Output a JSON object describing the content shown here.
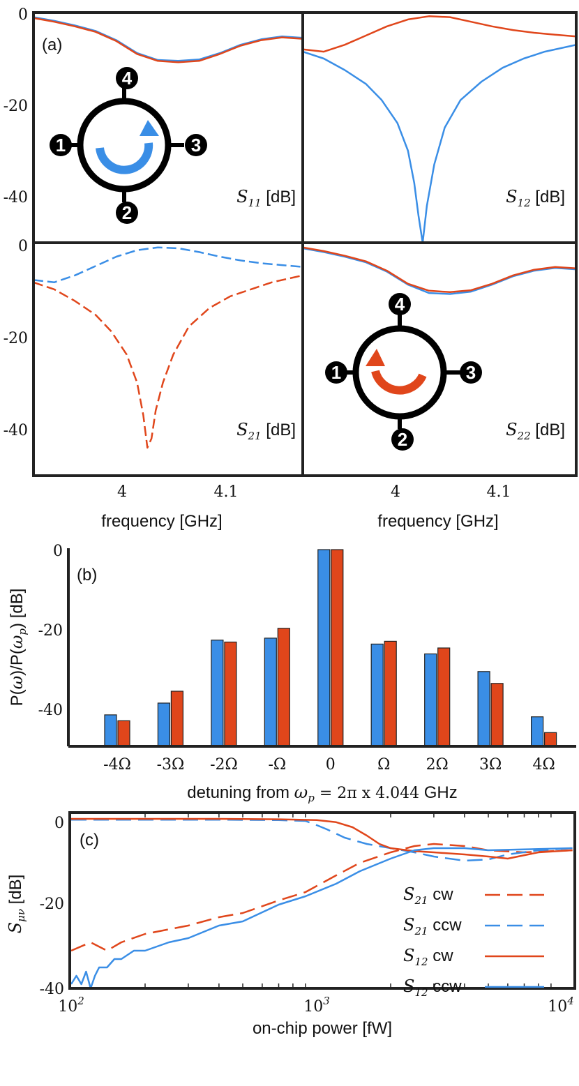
{
  "colors": {
    "blue": "#3a8ee6",
    "red": "#e0461b",
    "frame": "#222222"
  },
  "chart_data": [
    {
      "id": "a",
      "type": "line",
      "panel_label": "(a)",
      "xlabel": "frequency [GHz]",
      "xticks": [
        "4",
        "4.1"
      ],
      "yticks": [
        "0",
        "-20",
        "-40"
      ],
      "ylim": [
        -50,
        0
      ],
      "xlim": [
        3.93,
        4.19
      ],
      "subplots": [
        {
          "name": "S11",
          "label_sym": "S",
          "label_sub": "11",
          "label_unit": " [dB]",
          "series": [
            {
              "color": "blue",
              "x": [
                3.93,
                3.95,
                3.97,
                3.99,
                4.01,
                4.03,
                4.05,
                4.07,
                4.09,
                4.11,
                4.13,
                4.15,
                4.17,
                4.19
              ],
              "y": [
                -1,
                -1.8,
                -2.8,
                -4,
                -6,
                -8.8,
                -10.3,
                -10.5,
                -10.2,
                -8.8,
                -7,
                -5.8,
                -5.2,
                -5.5
              ]
            },
            {
              "color": "red",
              "x": [
                3.93,
                3.95,
                3.97,
                3.99,
                4.01,
                4.03,
                4.05,
                4.07,
                4.09,
                4.11,
                4.13,
                4.15,
                4.17,
                4.19
              ],
              "y": [
                -1.2,
                -2,
                -3,
                -4.2,
                -6.2,
                -9,
                -10.5,
                -10.8,
                -10.5,
                -9,
                -7.2,
                -6,
                -5.4,
                -5.7
              ]
            }
          ]
        },
        {
          "name": "S12",
          "label_sym": "S",
          "label_sub": "12",
          "label_unit": " [dB]",
          "series": [
            {
              "color": "red",
              "x": [
                3.93,
                3.95,
                3.97,
                3.99,
                4.01,
                4.03,
                4.05,
                4.07,
                4.09,
                4.11,
                4.13,
                4.15,
                4.17,
                4.19
              ],
              "y": [
                -8,
                -8.5,
                -7,
                -5,
                -3,
                -1.5,
                -0.8,
                -1,
                -2,
                -3,
                -3.8,
                -4.4,
                -4.8,
                -5.2
              ]
            },
            {
              "color": "blue",
              "x": [
                3.93,
                3.95,
                3.97,
                3.99,
                4.005,
                4.02,
                4.03,
                4.036,
                4.04,
                4.044,
                4.048,
                4.055,
                4.065,
                4.08,
                4.1,
                4.12,
                4.14,
                4.16,
                4.19
              ],
              "y": [
                -8.5,
                -10,
                -12.5,
                -15.5,
                -19,
                -24,
                -30,
                -37,
                -44,
                -50,
                -42,
                -33,
                -25,
                -19,
                -15,
                -12,
                -10,
                -8.5,
                -7
              ]
            }
          ]
        },
        {
          "name": "S21",
          "label_sym": "S",
          "label_sub": "21",
          "label_unit": " [dB]",
          "series": [
            {
              "color": "blue",
              "dashed": true,
              "x": [
                3.93,
                3.95,
                3.97,
                3.99,
                4.01,
                4.03,
                4.05,
                4.07,
                4.09,
                4.11,
                4.13,
                4.15,
                4.17,
                4.19
              ],
              "y": [
                -8,
                -8.5,
                -7,
                -5,
                -3,
                -1.6,
                -1,
                -1.2,
                -2,
                -3,
                -3.8,
                -4.4,
                -4.8,
                -5.2
              ]
            },
            {
              "color": "red",
              "dashed": true,
              "x": [
                3.93,
                3.95,
                3.97,
                3.99,
                4.005,
                4.02,
                4.03,
                4.036,
                4.04,
                4.044,
                4.048,
                4.055,
                4.065,
                4.08,
                4.1,
                4.12,
                4.14,
                4.16,
                4.19
              ],
              "y": [
                -8.5,
                -10,
                -12.5,
                -15.5,
                -19,
                -24,
                -30,
                -37,
                -44,
                -42,
                -36,
                -30,
                -24,
                -18,
                -14,
                -11.5,
                -10,
                -8.5,
                -7
              ]
            }
          ]
        },
        {
          "name": "S22",
          "label_sym": "S",
          "label_sub": "22",
          "label_unit": " [dB]",
          "series": [
            {
              "color": "blue",
              "x": [
                3.93,
                3.95,
                3.97,
                3.99,
                4.01,
                4.03,
                4.05,
                4.07,
                4.09,
                4.11,
                4.13,
                4.15,
                4.17,
                4.19
              ],
              "y": [
                -1.2,
                -2,
                -3,
                -4.2,
                -6.2,
                -9,
                -10.8,
                -11,
                -10.5,
                -9,
                -7.2,
                -6,
                -5.4,
                -5.7
              ]
            },
            {
              "color": "red",
              "x": [
                3.93,
                3.95,
                3.97,
                3.99,
                4.01,
                4.03,
                4.05,
                4.07,
                4.09,
                4.11,
                4.13,
                4.15,
                4.17,
                4.19
              ],
              "y": [
                -1,
                -1.8,
                -2.8,
                -4,
                -6,
                -8.8,
                -10.3,
                -10.6,
                -10.2,
                -8.8,
                -7,
                -5.8,
                -5.2,
                -5.5
              ]
            }
          ]
        }
      ],
      "insets": [
        {
          "subplot": "S11",
          "ports": [
            "1",
            "2",
            "3",
            "4"
          ],
          "arrow_color": "blue"
        },
        {
          "subplot": "S22",
          "ports": [
            "1",
            "2",
            "3",
            "4"
          ],
          "arrow_color": "red"
        }
      ]
    },
    {
      "id": "b",
      "type": "bar",
      "panel_label": "(b)",
      "ylabel": "P(ω)/P(ωp) [dB]",
      "ylabel_parts": [
        "P(",
        "ω",
        ")/P(",
        "ω",
        "p",
        ") [dB]"
      ],
      "xlabel_text": "detuning from ",
      "xlabel_math": "ωp = 2π x 4.044",
      "xlabel_math_parts": [
        "ω",
        "p",
        " = 2π x 4.044"
      ],
      "xlabel_unit": " GHz",
      "categories": [
        "-4Ω",
        "-3Ω",
        "-2Ω",
        "-Ω",
        "0",
        "Ω",
        "2Ω",
        "3Ω",
        "4Ω"
      ],
      "ylim": [
        -50,
        0
      ],
      "yticks": [
        "0",
        "-20",
        "-40"
      ],
      "series": [
        {
          "color": "blue",
          "values": [
            -42,
            -39,
            -23,
            -22.5,
            0,
            -24,
            -26.5,
            -31,
            -42.5
          ]
        },
        {
          "color": "red",
          "values": [
            -43.5,
            -36,
            -23.5,
            -20,
            0,
            -23.3,
            -25,
            -34,
            -46.5
          ]
        }
      ]
    },
    {
      "id": "c",
      "type": "line",
      "panel_label": "(c)",
      "xscale": "log",
      "xlim": [
        100,
        11000
      ],
      "ylim": [
        -40,
        2
      ],
      "xlabel": "on-chip power [fW]",
      "ylabel_sym": "S",
      "ylabel_sub": "μν",
      "ylabel_unit": " [dB]",
      "xticks": [
        {
          "base": "10",
          "exp": "2"
        },
        {
          "base": "10",
          "exp": "3"
        },
        {
          "base": "10",
          "exp": "4"
        }
      ],
      "yticks": [
        "0",
        "-20",
        "-40"
      ],
      "legend": [
        {
          "sym": "S",
          "sub": "21",
          "text": " cw",
          "color": "red",
          "dashed": true
        },
        {
          "sym": "S",
          "sub": "21",
          "text": " ccw",
          "color": "blue",
          "dashed": true
        },
        {
          "sym": "S",
          "sub": "12",
          "text": " cw",
          "color": "red",
          "dashed": false
        },
        {
          "sym": "S",
          "sub": "12",
          "text": " ccw",
          "color": "blue",
          "dashed": false
        }
      ],
      "series": [
        {
          "name": "S21 cw",
          "color": "red",
          "dashed": true,
          "x": [
            100,
            120,
            140,
            160,
            200,
            300,
            400,
            500,
            700,
            900,
            1200,
            1500,
            2000,
            2500,
            3000,
            4000,
            5000,
            7000,
            11000
          ],
          "y": [
            -31,
            -29,
            -31,
            -29,
            -27,
            -25,
            -23,
            -22,
            -19,
            -17,
            -13,
            -10,
            -7.5,
            -6,
            -5.5,
            -6,
            -7,
            -7.5,
            -7
          ]
        },
        {
          "name": "S21 ccw",
          "color": "blue",
          "dashed": true,
          "x": [
            100,
            200,
            400,
            700,
            900,
            1000,
            1100,
            1300,
            1600,
            2000,
            2500,
            3000,
            4000,
            5000,
            6000,
            8000,
            11000
          ],
          "y": [
            0.3,
            0.3,
            0.3,
            0.2,
            0,
            -1,
            -2,
            -4,
            -5.5,
            -6.5,
            -7.5,
            -8.5,
            -9.5,
            -9.2,
            -8,
            -7,
            -6.5
          ]
        },
        {
          "name": "S12 cw",
          "color": "red",
          "dashed": false,
          "x": [
            100,
            200,
            400,
            700,
            1000,
            1200,
            1400,
            1600,
            1800,
            2000,
            2500,
            3000,
            4000,
            5000,
            6000,
            8000,
            11000
          ],
          "y": [
            0.5,
            0.5,
            0.5,
            0.4,
            0.2,
            -0.3,
            -1.5,
            -3.5,
            -5.5,
            -6.5,
            -7.2,
            -7.5,
            -8,
            -8.5,
            -9,
            -7.5,
            -7
          ]
        },
        {
          "name": "S12 ccw",
          "color": "blue",
          "dashed": false,
          "x": [
            100,
            105,
            110,
            115,
            120,
            125,
            130,
            140,
            150,
            160,
            180,
            200,
            250,
            300,
            400,
            500,
            700,
            900,
            1200,
            1500,
            2000,
            2500,
            3000,
            4000,
            5000,
            7000,
            11000
          ],
          "y": [
            -39,
            -37,
            -39,
            -36,
            -40,
            -37,
            -35,
            -35,
            -33,
            -33,
            -31,
            -31,
            -29,
            -28,
            -25,
            -24,
            -20,
            -18,
            -15,
            -12,
            -9,
            -7,
            -6.5,
            -6.5,
            -7,
            -6.8,
            -6.5
          ]
        }
      ]
    }
  ]
}
